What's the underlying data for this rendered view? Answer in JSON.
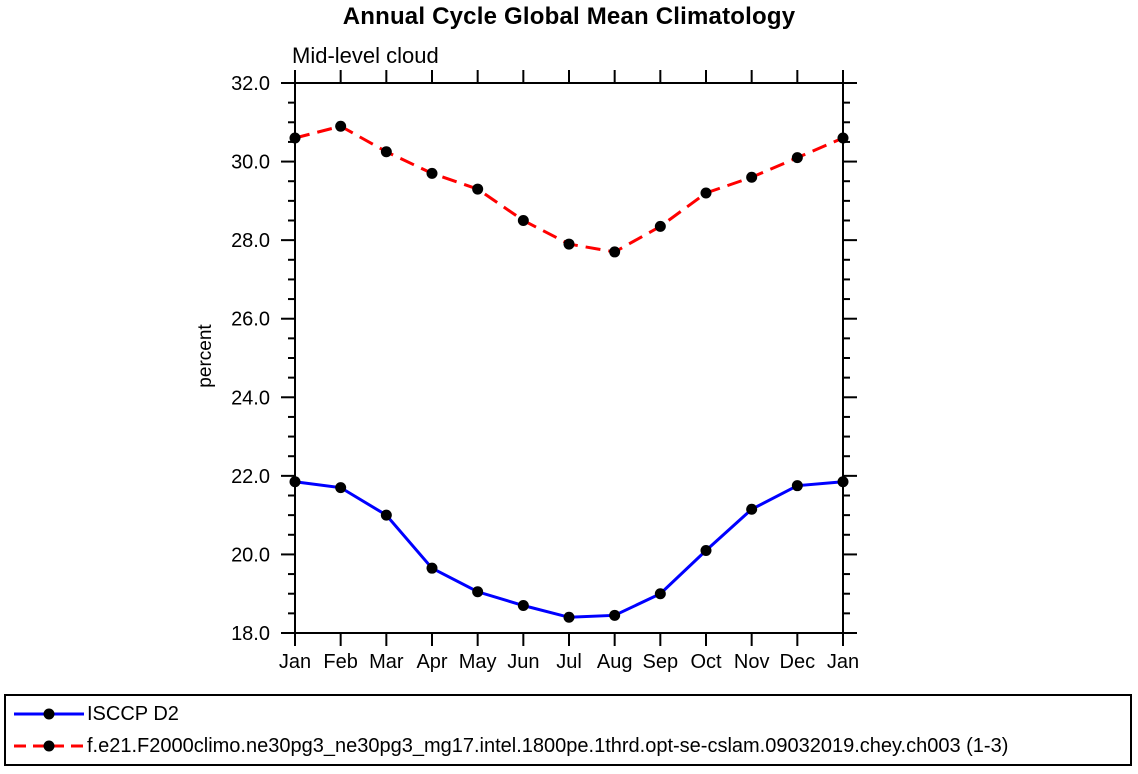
{
  "chart_data": {
    "type": "line",
    "title": "Annual Cycle Global Mean Climatology",
    "subtitle": "Mid-level cloud",
    "ylabel": "percent",
    "xlabel": "",
    "categories": [
      "Jan",
      "Feb",
      "Mar",
      "Apr",
      "May",
      "Jun",
      "Jul",
      "Aug",
      "Sep",
      "Oct",
      "Nov",
      "Dec",
      "Jan"
    ],
    "ylim": [
      18.0,
      32.0
    ],
    "ytick_major_interval": 2.0,
    "ytick_minor_interval": 0.5,
    "grid": "off",
    "legend_position": "bottom",
    "frame_color": "#000000",
    "marker": "filled-circle",
    "marker_color": "#000000",
    "series": [
      {
        "name": "ISCCP D2",
        "color": "#0000ff",
        "line_style": "solid",
        "values": [
          21.85,
          21.7,
          21.0,
          19.65,
          19.05,
          18.7,
          18.4,
          18.45,
          19.0,
          20.1,
          21.15,
          21.75,
          21.85
        ]
      },
      {
        "name": "f.e21.F2000climo.ne30pg3_ne30pg3_mg17.intel.1800pe.1thrd.opt-se-cslam.09032019.chey.ch003 (1-3)",
        "color": "#ff0000",
        "line_style": "dashed",
        "values": [
          30.6,
          30.9,
          30.25,
          29.7,
          29.3,
          28.5,
          27.9,
          27.7,
          28.35,
          29.2,
          29.6,
          30.1,
          30.6
        ]
      }
    ]
  }
}
